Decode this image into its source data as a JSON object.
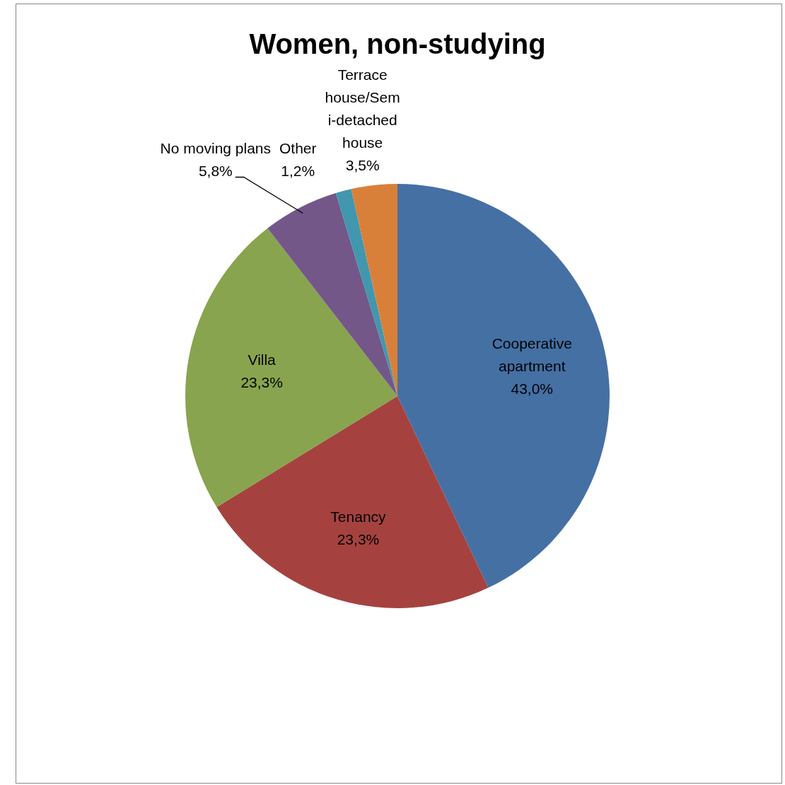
{
  "chart_data": {
    "type": "pie",
    "title": "Women, non-studying",
    "categories": [
      "Cooperative apartment",
      "Tenancy",
      "Villa",
      "No moving plans",
      "Other",
      "Terrace house/Semi-detached house"
    ],
    "values": [
      43.0,
      23.3,
      23.3,
      5.8,
      1.2,
      3.5
    ],
    "colors": [
      "#4570a4",
      "#a5423f",
      "#88a44e",
      "#735789",
      "#4197ae",
      "#d8803a"
    ],
    "value_labels": [
      "43,0%",
      "23,3%",
      "23,3%",
      "5,8%",
      "1,2%",
      "3,5%"
    ]
  }
}
